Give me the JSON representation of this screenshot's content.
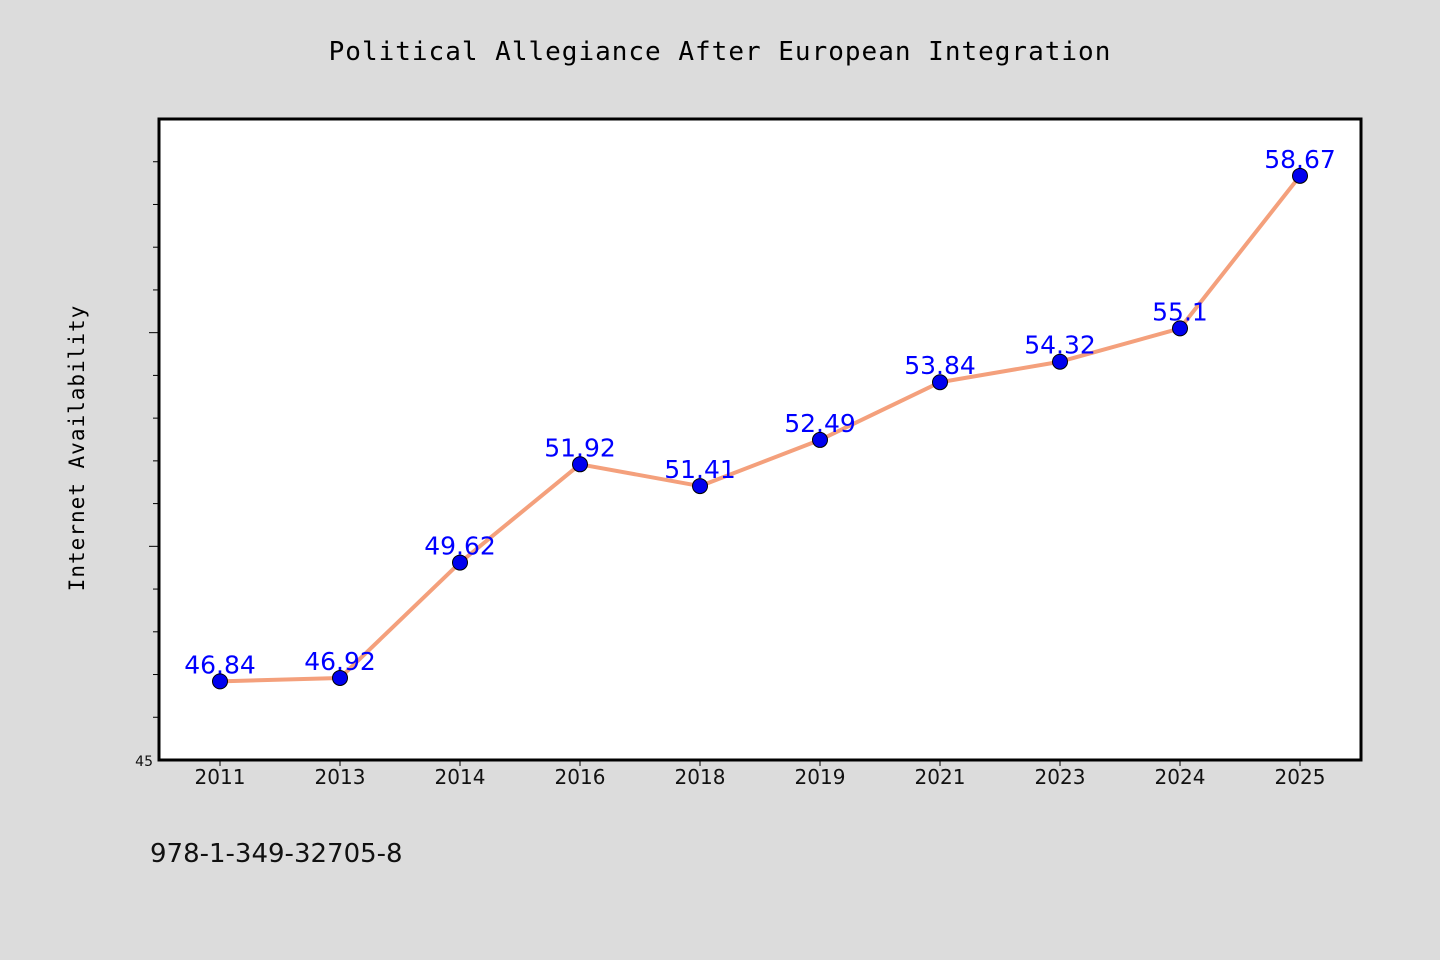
{
  "chart_data": {
    "type": "line",
    "title": "Political Allegiance After European Integration",
    "xlabel": "",
    "ylabel": "Internet Availability",
    "categories": [
      "2011",
      "2013",
      "2014",
      "2016",
      "2018",
      "2019",
      "2021",
      "2023",
      "2024",
      "2025"
    ],
    "values": [
      46.84,
      46.92,
      49.62,
      51.92,
      51.41,
      52.49,
      53.84,
      54.32,
      55.1,
      58.67
    ],
    "data_labels": [
      "46.84",
      "46.92",
      "49.62",
      "51.92",
      "51.41",
      "52.49",
      "53.84",
      "54.32",
      "55.1",
      "58.67"
    ],
    "ylim": [
      45,
      60
    ],
    "ytick_labels": [
      "45"
    ],
    "grid": false,
    "line_color": "#f4a07c",
    "marker_color": "#0000ee",
    "label_color": "#0000ff"
  },
  "footer": {
    "isbn": "978-1-349-32705-8"
  }
}
